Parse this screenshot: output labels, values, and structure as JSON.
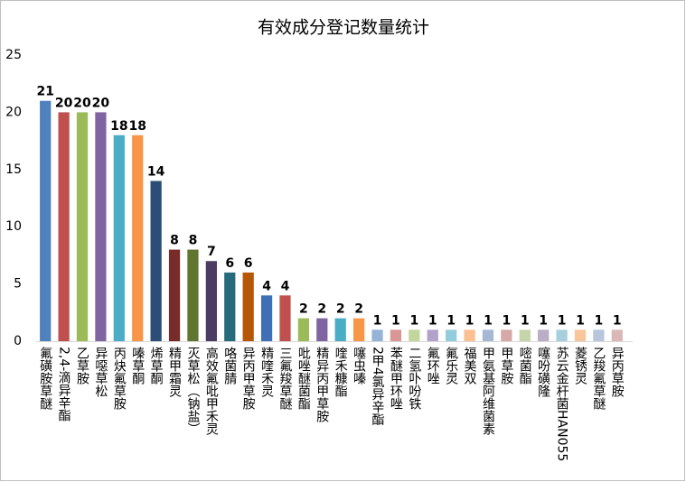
{
  "chart_data": {
    "type": "bar",
    "title": "有效成分登记数量统计",
    "categories": [
      "氟磺胺草醚",
      "2,4-滴异辛酯",
      "乙草胺",
      "异噁草松",
      "丙炔氟草胺",
      "嗪草酮",
      "烯草酮",
      "精甲霜灵",
      "灭草松（钠盐）",
      "高效氟吡甲禾灵",
      "咯菌腈",
      "异丙甲草胺",
      "精喹禾灵",
      "三氟羧草醚",
      "吡唑醚菌酯",
      "精异丙甲草胺",
      "喹禾糠酯",
      "噻虫嗪",
      "2甲4氯异辛酯",
      "苯醚甲环唑",
      "二氢卟吩铁",
      "氟环唑",
      "氟乐灵",
      "福美双",
      "甲氨基阿维菌素",
      "甲草胺",
      "嘧菌酯",
      "噻吩磺隆",
      "苏云金杆菌HAN055",
      "菱锈灵",
      "乙羧氟草醚",
      "异丙草胺"
    ],
    "values": [
      21,
      20,
      20,
      20,
      18,
      18,
      14,
      8,
      8,
      7,
      6,
      6,
      4,
      4,
      2,
      2,
      2,
      2,
      1,
      1,
      1,
      1,
      1,
      1,
      1,
      1,
      1,
      1,
      1,
      1,
      1,
      1
    ],
    "colors": [
      "#4f81bd",
      "#c0504d",
      "#9bbb59",
      "#8064a2",
      "#4bacc6",
      "#f79646",
      "#2c4d75",
      "#772c2a",
      "#5f7530",
      "#4d3b62",
      "#276a7c",
      "#b65708",
      "#3f6fb5",
      "#c0504d",
      "#9bbb59",
      "#8064a2",
      "#4bacc6",
      "#f79646",
      "#95b3d7",
      "#d99694",
      "#c3d69b",
      "#b3a2c7",
      "#93cddd",
      "#fac08f",
      "#a5b8d3",
      "#d6a9a8",
      "#c5d4a9",
      "#b9adc8",
      "#a6d1dc",
      "#f9c59a",
      "#b7c6dd",
      "#dbb8b7"
    ],
    "ylim": [
      0,
      25
    ],
    "yticks": [
      0,
      5,
      10,
      15,
      20,
      25
    ],
    "grid": false
  }
}
